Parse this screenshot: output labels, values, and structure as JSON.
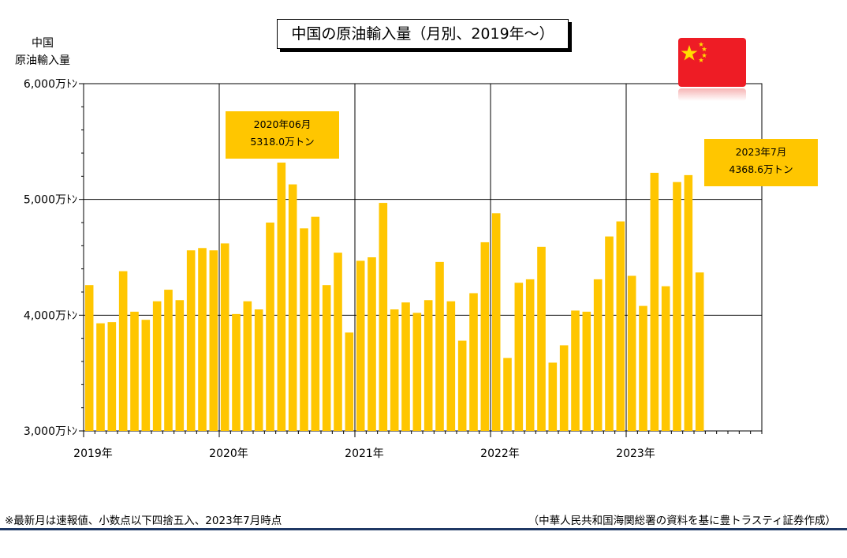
{
  "title": "中国の原油輸入量（月別、2019年～）",
  "ylabel_lines": [
    "中国",
    "原油輸入量"
  ],
  "annotations": [
    {
      "line1": "2020年06月",
      "line2": "5318.0万トン"
    },
    {
      "line1": "2023年7月",
      "line2": "4368.6万トン"
    }
  ],
  "footnote": "※最新月は速報値、小数点以下四捨五入、2023年7月時点",
  "source": "（中華人民共和国海関総署の資料を基に豊トラスティ証券作成）",
  "flag_icon": "china-flag-icon",
  "colors": {
    "bar": "#FFC600",
    "annotation": "#FFC600",
    "flag": "#EE1C25",
    "star": "#FFDE00",
    "rule": "#1f3864"
  },
  "chart_data": {
    "type": "bar",
    "ylim": [
      3000,
      6000
    ],
    "yticks": [
      {
        "value": 3000,
        "label": "3,000万ﾄﾝ"
      },
      {
        "value": 4000,
        "label": "4,000万ﾄﾝ"
      },
      {
        "value": 5000,
        "label": "5,000万ﾄﾝ"
      },
      {
        "value": 6000,
        "label": "6,000万ﾄﾝ"
      }
    ],
    "year_labels": [
      "2019年",
      "2020年",
      "2021年",
      "2022年",
      "2023年"
    ],
    "months_per_year": 12,
    "total_slots": 60,
    "grid": true,
    "values": [
      4260,
      3930,
      3940,
      4380,
      4030,
      3960,
      4120,
      4220,
      4130,
      4560,
      4580,
      4560,
      4620,
      4010,
      4120,
      4050,
      4800,
      5318,
      5130,
      4750,
      4850,
      4260,
      4540,
      3850,
      4470,
      4500,
      4970,
      4050,
      4110,
      4020,
      4130,
      4460,
      4120,
      3780,
      4190,
      4630,
      4880,
      3630,
      4280,
      4310,
      4590,
      3590,
      3740,
      4040,
      4030,
      4310,
      4680,
      4810,
      4340,
      4080,
      5230,
      4250,
      5150,
      5210,
      4369
    ]
  }
}
